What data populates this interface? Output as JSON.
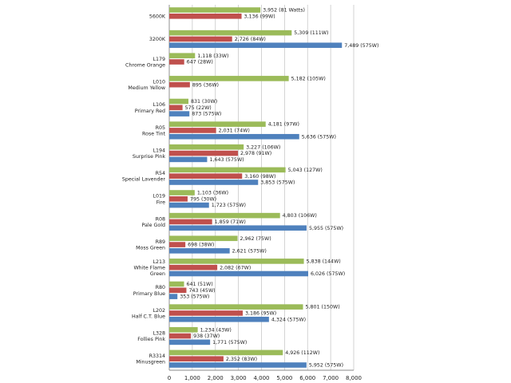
{
  "chart_data": {
    "type": "bar",
    "orientation": "horizontal",
    "xlim": [
      0,
      8000
    ],
    "x_ticks": [
      "0",
      "1,000",
      "2,000",
      "3,000",
      "4,000",
      "5,000",
      "6,000",
      "7,000",
      "8,000"
    ],
    "grid": "vertical",
    "legend": "none",
    "series_colors": [
      "#9bbb59",
      "#c0504d",
      "#4f81bd"
    ],
    "categories": [
      {
        "lines": [
          "5600K"
        ],
        "bars": [
          {
            "series": 0,
            "value": 3952,
            "label": "3,952 (81 Watts)"
          },
          {
            "series": 1,
            "value": 3136,
            "label": "3,136 (99W)"
          }
        ]
      },
      {
        "lines": [
          "3200K"
        ],
        "bars": [
          {
            "series": 0,
            "value": 5309,
            "label": "5,309 (111W)"
          },
          {
            "series": 1,
            "value": 2726,
            "label": "2,726 (84W)"
          },
          {
            "series": 2,
            "value": 7489,
            "label": "7,489 (575W)"
          }
        ]
      },
      {
        "lines": [
          "L179",
          "Chrome Orange"
        ],
        "bars": [
          {
            "series": 0,
            "value": 1118,
            "label": "1,118 (33W)"
          },
          {
            "series": 1,
            "value": 647,
            "label": "647 (28W)"
          }
        ]
      },
      {
        "lines": [
          "L010",
          "Medium Yellow"
        ],
        "bars": [
          {
            "series": 0,
            "value": 5182,
            "label": "5,182 (105W)"
          },
          {
            "series": 1,
            "value": 895,
            "label": "895 (36W)"
          }
        ]
      },
      {
        "lines": [
          "L106",
          "Primary Red"
        ],
        "bars": [
          {
            "series": 0,
            "value": 831,
            "label": "831 (30W)"
          },
          {
            "series": 1,
            "value": 575,
            "label": "575 (22W)"
          },
          {
            "series": 2,
            "value": 873,
            "label": "873 (575W)"
          }
        ]
      },
      {
        "lines": [
          "R05",
          "Rose Tint"
        ],
        "bars": [
          {
            "series": 0,
            "value": 4181,
            "label": "4,181 (97W)"
          },
          {
            "series": 1,
            "value": 2031,
            "label": "2,031 (74W)"
          },
          {
            "series": 2,
            "value": 5636,
            "label": "5,636 (575W)"
          }
        ]
      },
      {
        "lines": [
          "L194",
          "Surprise Pink"
        ],
        "bars": [
          {
            "series": 0,
            "value": 3227,
            "label": "3,227 (106W)"
          },
          {
            "series": 1,
            "value": 2978,
            "label": "2,978 (91W)"
          },
          {
            "series": 2,
            "value": 1643,
            "label": "1,643 (575W)"
          }
        ]
      },
      {
        "lines": [
          "R54",
          "Special Lavender"
        ],
        "bars": [
          {
            "series": 0,
            "value": 5043,
            "label": "5,043 (127W)"
          },
          {
            "series": 1,
            "value": 3160,
            "label": "3,160 (98W)"
          },
          {
            "series": 2,
            "value": 3853,
            "label": "3,853 (575W)"
          }
        ]
      },
      {
        "lines": [
          "L019",
          "Fire"
        ],
        "bars": [
          {
            "series": 0,
            "value": 1103,
            "label": "1,103 (36W)"
          },
          {
            "series": 1,
            "value": 795,
            "label": "795 (30W)"
          },
          {
            "series": 2,
            "value": 1723,
            "label": "1,723 (575W)"
          }
        ]
      },
      {
        "lines": [
          "R08",
          "Pale Gold"
        ],
        "bars": [
          {
            "series": 0,
            "value": 4803,
            "label": "4,803 (106W)"
          },
          {
            "series": 1,
            "value": 1859,
            "label": "1,859 (71W)"
          },
          {
            "series": 2,
            "value": 5955,
            "label": "5,955 (575W)"
          }
        ]
      },
      {
        "lines": [
          "R89",
          "Moss Green"
        ],
        "bars": [
          {
            "series": 0,
            "value": 2962,
            "label": "2,962 (75W)"
          },
          {
            "series": 1,
            "value": 698,
            "label": "698 (38W)"
          },
          {
            "series": 2,
            "value": 2621,
            "label": "2,621 (575W)"
          }
        ]
      },
      {
        "lines": [
          "L213",
          "White Flame",
          "Green"
        ],
        "bars": [
          {
            "series": 0,
            "value": 5838,
            "label": "5,838 (144W)"
          },
          {
            "series": 1,
            "value": 2082,
            "label": "2,082 (67W)"
          },
          {
            "series": 2,
            "value": 6026,
            "label": "6,026 (575W)"
          }
        ]
      },
      {
        "lines": [
          "R80",
          "Primary Blue"
        ],
        "bars": [
          {
            "series": 0,
            "value": 641,
            "label": "641 (51W)"
          },
          {
            "series": 1,
            "value": 743,
            "label": "743 (45W)"
          },
          {
            "series": 2,
            "value": 353,
            "label": "353 (575W)"
          }
        ]
      },
      {
        "lines": [
          "L202",
          "Half C.T. Blue"
        ],
        "bars": [
          {
            "series": 0,
            "value": 5801,
            "label": "5,801 (150W)"
          },
          {
            "series": 1,
            "value": 3186,
            "label": "3,186 (95W)"
          },
          {
            "series": 2,
            "value": 4324,
            "label": "4,324 (575W)"
          }
        ]
      },
      {
        "lines": [
          "L328",
          "Follies Pink"
        ],
        "bars": [
          {
            "series": 0,
            "value": 1234,
            "label": "1,234 (43W)"
          },
          {
            "series": 1,
            "value": 938,
            "label": "938 (37W)"
          },
          {
            "series": 2,
            "value": 1771,
            "label": "1,771 (575W)"
          }
        ]
      },
      {
        "lines": [
          "R3314",
          "Minusgreen"
        ],
        "bars": [
          {
            "series": 0,
            "value": 4926,
            "label": "4,926 (112W)"
          },
          {
            "series": 1,
            "value": 2352,
            "label": "2,352 (83W)"
          },
          {
            "series": 2,
            "value": 5952,
            "label": "5,952 (575W)"
          }
        ]
      }
    ]
  }
}
